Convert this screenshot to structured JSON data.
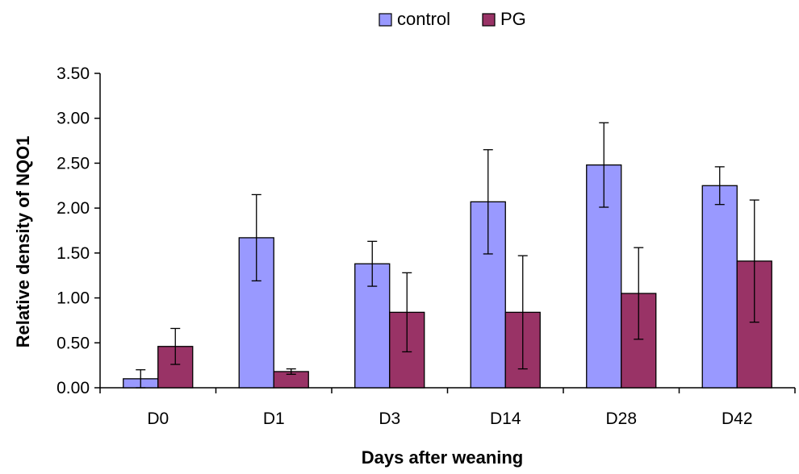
{
  "chart_data": {
    "type": "bar",
    "title": "",
    "xlabel": "Days after weaning",
    "ylabel": "Relative density of NQO1",
    "categories": [
      "D0",
      "D1",
      "D3",
      "D14",
      "D28",
      "D42"
    ],
    "series": [
      {
        "name": "control",
        "color": "#9999ff",
        "values": [
          0.1,
          1.67,
          1.38,
          2.07,
          2.48,
          2.25
        ],
        "error": [
          0.1,
          0.48,
          0.25,
          0.58,
          0.47,
          0.21
        ]
      },
      {
        "name": "PG",
        "color": "#993366",
        "values": [
          0.46,
          0.18,
          0.84,
          0.84,
          1.05,
          1.41
        ],
        "error": [
          0.2,
          0.03,
          0.44,
          0.63,
          0.51,
          0.68
        ]
      }
    ],
    "ylim": [
      0,
      3.5
    ],
    "yticks": [
      "0.00",
      "0.50",
      "1.00",
      "1.50",
      "2.00",
      "2.50",
      "3.00",
      "3.50"
    ],
    "grid": false,
    "legend_position": "top-center",
    "error_bars": true
  }
}
